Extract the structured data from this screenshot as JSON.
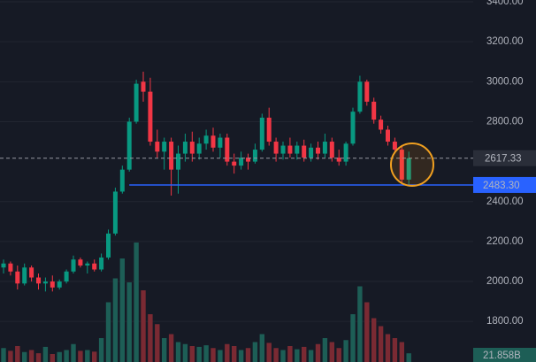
{
  "chart_data": {
    "type": "candlestick",
    "open": [
      2070,
      2090,
      2050,
      1990,
      2070,
      2020,
      1990,
      2000,
      1970,
      2000,
      2050,
      2110,
      2080,
      2090,
      2060,
      2120,
      2240,
      2450,
      2560,
      2800,
      3000,
      2950,
      2700,
      2650,
      2700,
      2560,
      2640,
      2700,
      2640,
      2690,
      2730,
      2670,
      2720,
      2600,
      2580,
      2620,
      2600,
      2660,
      2820,
      2700,
      2640,
      2680,
      2640,
      2680,
      2620,
      2670,
      2640,
      2700,
      2620,
      2600,
      2690,
      2850,
      3000,
      2900,
      2810,
      2760,
      2700,
      2660,
      2510
    ],
    "high": [
      2110,
      2100,
      2080,
      2090,
      2080,
      2040,
      2020,
      2030,
      2010,
      2060,
      2130,
      2120,
      2100,
      2110,
      2140,
      2260,
      2470,
      2580,
      2820,
      3010,
      3050,
      3020,
      2760,
      2720,
      2720,
      2680,
      2740,
      2750,
      2720,
      2760,
      2770,
      2740,
      2740,
      2640,
      2650,
      2640,
      2690,
      2840,
      2870,
      2720,
      2700,
      2720,
      2700,
      2710,
      2690,
      2700,
      2740,
      2720,
      2660,
      2700,
      2870,
      3030,
      3010,
      2920,
      2830,
      2780,
      2720,
      2680,
      2650
    ],
    "low": [
      2040,
      2030,
      1960,
      1980,
      2000,
      1960,
      1950,
      1950,
      1960,
      1990,
      2040,
      2070,
      2040,
      2050,
      2050,
      2110,
      2230,
      2440,
      2550,
      2790,
      2900,
      2680,
      2620,
      2560,
      2430,
      2440,
      2600,
      2600,
      2610,
      2660,
      2650,
      2620,
      2580,
      2540,
      2560,
      2560,
      2590,
      2650,
      2680,
      2600,
      2610,
      2620,
      2610,
      2600,
      2600,
      2610,
      2620,
      2600,
      2580,
      2580,
      2680,
      2840,
      2880,
      2790,
      2740,
      2680,
      2640,
      2490,
      2480
    ],
    "close": [
      2090,
      2050,
      1990,
      2070,
      2020,
      1990,
      2000,
      1970,
      2000,
      2050,
      2110,
      2080,
      2090,
      2060,
      2120,
      2240,
      2450,
      2560,
      2800,
      2990,
      2950,
      2700,
      2650,
      2700,
      2560,
      2640,
      2700,
      2640,
      2690,
      2730,
      2670,
      2720,
      2600,
      2580,
      2620,
      2600,
      2660,
      2820,
      2700,
      2640,
      2680,
      2640,
      2680,
      2620,
      2670,
      2640,
      2700,
      2620,
      2600,
      2690,
      2850,
      3000,
      2900,
      2810,
      2760,
      2700,
      2660,
      2510,
      2617.33
    ],
    "volume": [
      35,
      28,
      40,
      25,
      30,
      22,
      38,
      20,
      25,
      30,
      45,
      28,
      30,
      26,
      60,
      150,
      210,
      260,
      200,
      300,
      180,
      120,
      95,
      60,
      70,
      50,
      45,
      40,
      38,
      42,
      35,
      30,
      45,
      40,
      30,
      35,
      50,
      70,
      48,
      35,
      30,
      40,
      32,
      38,
      30,
      45,
      60,
      50,
      35,
      55,
      120,
      190,
      150,
      110,
      90,
      70,
      60,
      50,
      21.858
    ],
    "volume_label": "21.858B",
    "up_color": "#089981",
    "down_color": "#f23645",
    "volume_up_color": "#1d5e56",
    "volume_down_color": "#7a2a33",
    "ylim": [
      1597,
      3409
    ],
    "vlim": [
      0,
      909
    ],
    "yticks": [
      {
        "value": 1800,
        "label": "1800.00"
      },
      {
        "value": 2000,
        "label": "2000.00"
      },
      {
        "value": 2200,
        "label": "2200.00"
      },
      {
        "value": 2400,
        "label": "2400.00"
      },
      {
        "value": 2800,
        "label": "2800.00"
      },
      {
        "value": 3000,
        "label": "3000.00"
      },
      {
        "value": 3200,
        "label": "3200.00"
      },
      {
        "value": 3400,
        "label": "3400.00"
      }
    ],
    "grid": true,
    "last_price": 2617.33,
    "level": {
      "value": 2483.3,
      "label": "2483.30",
      "color": "#2962ff"
    }
  }
}
